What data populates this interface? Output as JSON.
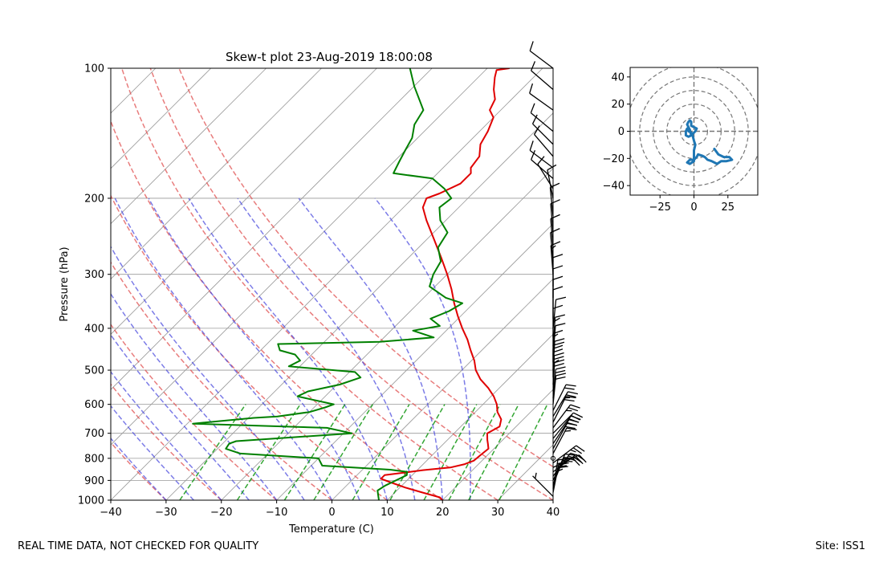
{
  "footer": {
    "disclaimer": "REAL TIME DATA, NOT CHECKED FOR QUALITY",
    "site": "Site: ISS1"
  },
  "chart_data": [
    {
      "type": "skew-t",
      "title": "Skew-t plot 23-Aug-2019 18:00:08",
      "xlabel": "Temperature (C)",
      "ylabel": "Pressure (hPa)",
      "xlim": [
        -40,
        40
      ],
      "ylim": [
        1000,
        100
      ],
      "y_scale": "log",
      "grid": true,
      "x_ticks": [
        "−40",
        "−30",
        "−20",
        "−10",
        "0",
        "10",
        "20",
        "30",
        "40"
      ],
      "y_ticks": [
        "100",
        "200",
        "300",
        "400",
        "500",
        "600",
        "700",
        "800",
        "900",
        "1000"
      ],
      "colors": {
        "temperature": "#e00000",
        "dewpoint": "#008000",
        "dry_adiabat": "#e05050",
        "moist_adiabat": "#4444dd",
        "mixing_ratio": "#009000",
        "isotherm": "#999999"
      },
      "series": [
        {
          "role": "temperature",
          "points": [
            [
              1000,
              20
            ],
            [
              985,
              19
            ],
            [
              960,
              15
            ],
            [
              935,
              11
            ],
            [
              910,
              7.5
            ],
            [
              892,
              5
            ],
            [
              875,
              5
            ],
            [
              860,
              9
            ],
            [
              852,
              11
            ],
            [
              840,
              15.5
            ],
            [
              825,
              17.5
            ],
            [
              810,
              18.5
            ],
            [
              780,
              18.8
            ],
            [
              760,
              19
            ],
            [
              740,
              18
            ],
            [
              725,
              17.2
            ],
            [
              700,
              16
            ],
            [
              675,
              17
            ],
            [
              650,
              16
            ],
            [
              625,
              14
            ],
            [
              600,
              12.5
            ],
            [
              575,
              10.5
            ],
            [
              550,
              8
            ],
            [
              525,
              5
            ],
            [
              500,
              2.5
            ],
            [
              475,
              0.5
            ],
            [
              450,
              -2
            ],
            [
              425,
              -4.5
            ],
            [
              400,
              -7.5
            ],
            [
              375,
              -10.5
            ],
            [
              350,
              -13.5
            ],
            [
              325,
              -16.5
            ],
            [
              300,
              -20
            ],
            [
              275,
              -24
            ],
            [
              250,
              -28.5
            ],
            [
              225,
              -33.5
            ],
            [
              210,
              -36.5
            ],
            [
              200,
              -37.5
            ],
            [
              195,
              -36
            ],
            [
              185,
              -34
            ],
            [
              175,
              -34
            ],
            [
              170,
              -35
            ],
            [
              160,
              -35.5
            ],
            [
              150,
              -37.5
            ],
            [
              140,
              -38.5
            ],
            [
              130,
              -40
            ],
            [
              125,
              -42
            ],
            [
              118,
              -43
            ],
            [
              112,
              -45
            ],
            [
              105,
              -47
            ],
            [
              101,
              -48
            ],
            [
              100,
              -46
            ]
          ]
        },
        {
          "role": "dewpoint",
          "points": [
            [
              1000,
              8.5
            ],
            [
              950,
              6.5
            ],
            [
              925,
              7
            ],
            [
              900,
              8
            ],
            [
              875,
              9
            ],
            [
              860,
              8.5
            ],
            [
              850,
              5
            ],
            [
              832,
              -8
            ],
            [
              800,
              -10
            ],
            [
              780,
              -25
            ],
            [
              760,
              -28.5
            ],
            [
              740,
              -28.8
            ],
            [
              730,
              -28
            ],
            [
              700,
              -8.5
            ],
            [
              680,
              -14
            ],
            [
              665,
              -39
            ],
            [
              645,
              -29
            ],
            [
              640,
              -25
            ],
            [
              625,
              -20
            ],
            [
              610,
              -18
            ],
            [
              600,
              -17
            ],
            [
              575,
              -25
            ],
            [
              560,
              -24
            ],
            [
              540,
              -19.5
            ],
            [
              520,
              -17
            ],
            [
              505,
              -19
            ],
            [
              490,
              -32
            ],
            [
              475,
              -31
            ],
            [
              460,
              -33
            ],
            [
              450,
              -36.5
            ],
            [
              435,
              -38
            ],
            [
              430,
              -20
            ],
            [
              420,
              -11
            ],
            [
              405,
              -16
            ],
            [
              395,
              -12
            ],
            [
              380,
              -15
            ],
            [
              365,
              -13
            ],
            [
              350,
              -12
            ],
            [
              340,
              -16
            ],
            [
              320,
              -21
            ],
            [
              300,
              -22.5
            ],
            [
              280,
              -23.5
            ],
            [
              260,
              -26.5
            ],
            [
              240,
              -27.5
            ],
            [
              225,
              -31
            ],
            [
              210,
              -33.5
            ],
            [
              200,
              -33
            ],
            [
              190,
              -36
            ],
            [
              180,
              -40
            ],
            [
              175,
              -48
            ],
            [
              165,
              -49
            ],
            [
              155,
              -50
            ],
            [
              145,
              -51
            ],
            [
              135,
              -53
            ],
            [
              125,
              -54
            ],
            [
              110,
              -60
            ],
            [
              100,
              -64
            ]
          ]
        }
      ],
      "wind_barbs": [
        {
          "p": 980,
          "u": 5,
          "v": -5
        },
        {
          "p": 960,
          "u": -5,
          "v": -25
        },
        {
          "p": 940,
          "u": -5,
          "v": -30
        },
        {
          "p": 920,
          "u": -10,
          "v": -25
        },
        {
          "p": 900,
          "u": -10,
          "v": -22
        },
        {
          "p": 880,
          "u": -15,
          "v": -20
        },
        {
          "p": 860,
          "u": -20,
          "v": -15
        },
        {
          "p": 840,
          "u": -25,
          "v": -12
        },
        {
          "p": 820,
          "u": -20,
          "v": -15
        },
        {
          "p": 800,
          "u": 0,
          "v": 0
        },
        {
          "p": 780,
          "u": -8,
          "v": -15
        },
        {
          "p": 760,
          "u": -10,
          "v": -18
        },
        {
          "p": 740,
          "u": -10,
          "v": -15
        },
        {
          "p": 720,
          "u": -12,
          "v": -15
        },
        {
          "p": 700,
          "u": -15,
          "v": -15
        },
        {
          "p": 680,
          "u": -15,
          "v": -20
        },
        {
          "p": 660,
          "u": -10,
          "v": -20
        },
        {
          "p": 640,
          "u": -12,
          "v": -20
        },
        {
          "p": 620,
          "u": -10,
          "v": -20
        },
        {
          "p": 600,
          "u": -2,
          "v": -20
        },
        {
          "p": 580,
          "u": -2,
          "v": -22
        },
        {
          "p": 560,
          "u": -1,
          "v": -20
        },
        {
          "p": 540,
          "u": -1,
          "v": -25
        },
        {
          "p": 520,
          "u": 0,
          "v": -20
        },
        {
          "p": 500,
          "u": -1,
          "v": -18
        },
        {
          "p": 480,
          "u": 0,
          "v": -15
        },
        {
          "p": 460,
          "u": -1,
          "v": -12
        },
        {
          "p": 440,
          "u": -1,
          "v": -14
        },
        {
          "p": 420,
          "u": 0,
          "v": -12
        },
        {
          "p": 400,
          "u": -1,
          "v": -10
        },
        {
          "p": 380,
          "u": 0,
          "v": -11
        },
        {
          "p": 360,
          "u": 0,
          "v": -10
        },
        {
          "p": 340,
          "u": 0,
          "v": -10
        },
        {
          "p": 320,
          "u": 0,
          "v": -12
        },
        {
          "p": 300,
          "u": 1,
          "v": -13
        },
        {
          "p": 280,
          "u": 1,
          "v": -11
        },
        {
          "p": 260,
          "u": 1,
          "v": -12
        },
        {
          "p": 240,
          "u": 1,
          "v": -12
        },
        {
          "p": 220,
          "u": 1,
          "v": -10
        },
        {
          "p": 200,
          "u": 2,
          "v": -10
        },
        {
          "p": 190,
          "u": 5,
          "v": -8
        },
        {
          "p": 180,
          "u": 7,
          "v": -6
        },
        {
          "p": 170,
          "u": 8,
          "v": -6
        },
        {
          "p": 160,
          "u": 6,
          "v": -7
        },
        {
          "p": 150,
          "u": 6,
          "v": -6
        },
        {
          "p": 140,
          "u": 6,
          "v": -5
        },
        {
          "p": 125,
          "u": 7,
          "v": -5
        },
        {
          "p": 112,
          "u": 7,
          "v": -6
        },
        {
          "p": 100,
          "u": 8,
          "v": -6
        }
      ]
    },
    {
      "type": "hodograph",
      "xlim": [
        -47,
        47
      ],
      "ylim": [
        -47,
        47
      ],
      "x_ticks": [
        "−25",
        "0",
        "25"
      ],
      "y_ticks": [
        "40",
        "20",
        "0",
        "−20",
        "−40"
      ],
      "rings": [
        10,
        20,
        30,
        40,
        50
      ],
      "color": "#1f77b4",
      "points": [
        [
          15,
          -13
        ],
        [
          18,
          -17
        ],
        [
          22,
          -19
        ],
        [
          26,
          -19
        ],
        [
          28,
          -21
        ],
        [
          24,
          -22
        ],
        [
          20,
          -22
        ],
        [
          17,
          -24
        ],
        [
          13,
          -22
        ],
        [
          10,
          -21
        ],
        [
          8,
          -19
        ],
        [
          6,
          -18
        ],
        [
          3,
          -17
        ],
        [
          2,
          -19
        ],
        [
          0,
          -21
        ],
        [
          -3,
          -21
        ],
        [
          -5,
          -23
        ],
        [
          -3,
          -24
        ],
        [
          0,
          -22
        ],
        [
          0,
          -18
        ],
        [
          0,
          -14
        ],
        [
          1,
          -10
        ],
        [
          0,
          -7
        ],
        [
          -1,
          -3
        ],
        [
          -2,
          -1
        ],
        [
          -4,
          0
        ],
        [
          -5,
          2
        ],
        [
          -6,
          0
        ],
        [
          -6,
          -3
        ],
        [
          -4,
          -4
        ],
        [
          -2,
          -3
        ],
        [
          -3,
          1
        ],
        [
          -4,
          3
        ],
        [
          -5,
          5
        ],
        [
          -4,
          7
        ],
        [
          -3,
          8
        ],
        [
          -2,
          7
        ],
        [
          -2,
          4
        ],
        [
          0,
          3
        ],
        [
          2,
          2
        ],
        [
          1,
          0
        ],
        [
          -1,
          -2
        ]
      ]
    }
  ]
}
